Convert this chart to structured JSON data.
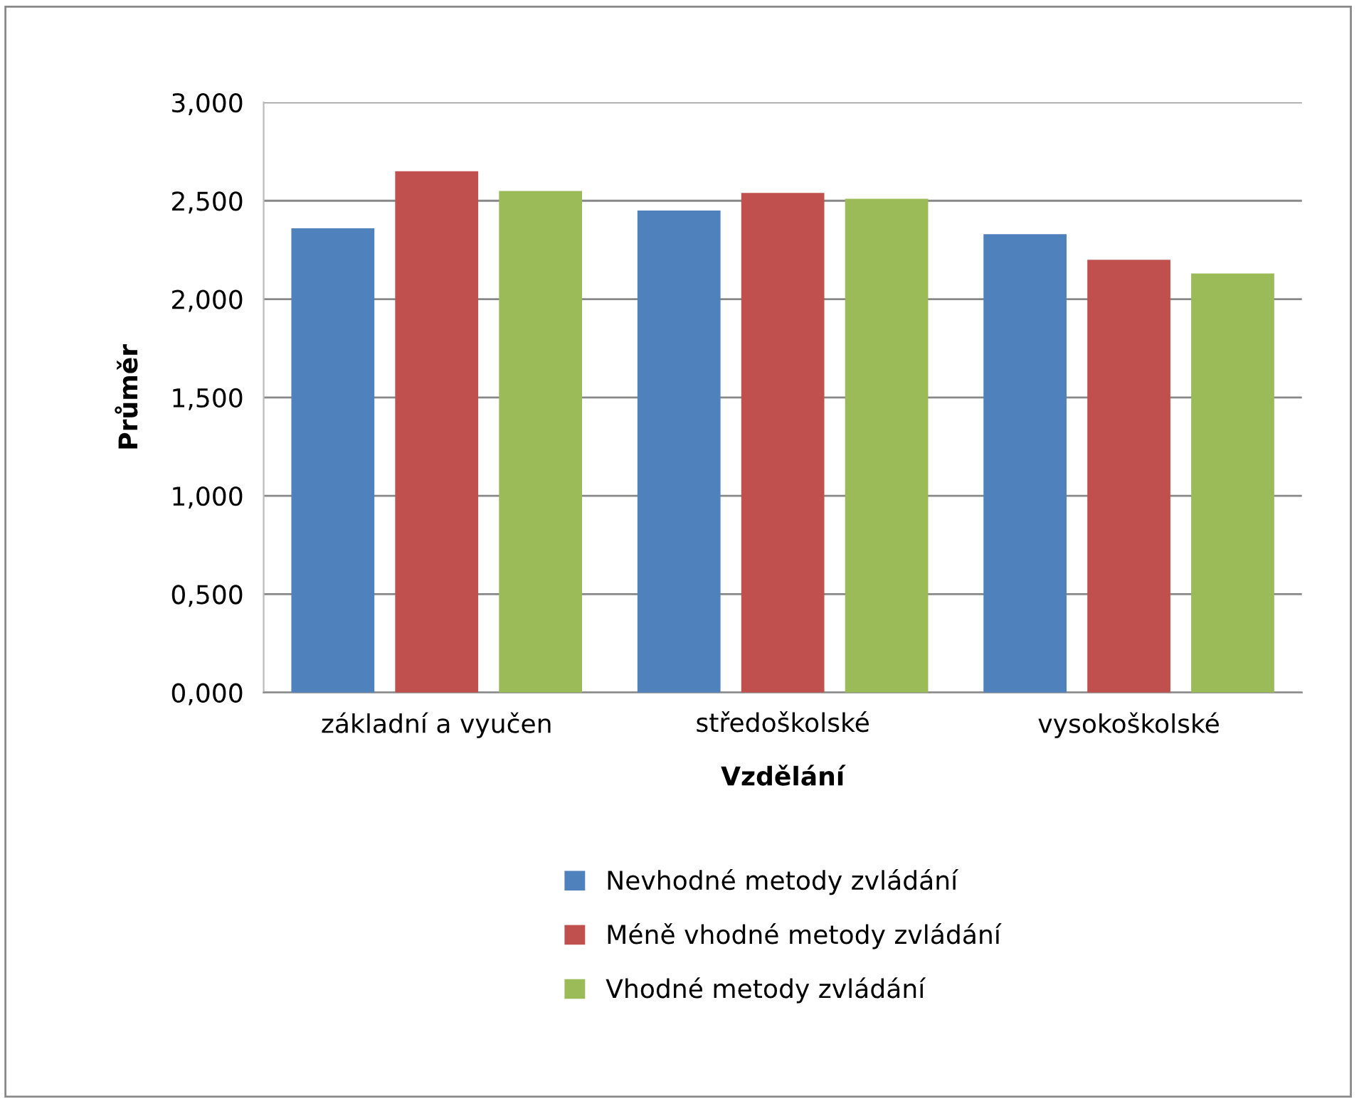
{
  "chart_data": {
    "type": "bar",
    "xlabel": "Vzdělání",
    "ylabel": "Průměr",
    "categories": [
      "základní a vyučen",
      "středoškolské",
      "vysokoškolské"
    ],
    "series": [
      {
        "name": "Nevhodné metody zvládání",
        "color": "#4f81bd",
        "values": [
          2.36,
          2.45,
          2.33
        ]
      },
      {
        "name": "Méně vhodné metody zvládání",
        "color": "#c0504d",
        "values": [
          2.65,
          2.54,
          2.2
        ]
      },
      {
        "name": "Vhodné metody zvládání",
        "color": "#9bbb59",
        "values": [
          2.55,
          2.51,
          2.13
        ]
      }
    ],
    "ylim": [
      0,
      3
    ],
    "yticks": [
      {
        "value": 0,
        "label": "0,000"
      },
      {
        "value": 0.5,
        "label": "0,500"
      },
      {
        "value": 1,
        "label": "1,000"
      },
      {
        "value": 1.5,
        "label": "1,500"
      },
      {
        "value": 2,
        "label": "2,000"
      },
      {
        "value": 2.5,
        "label": "2,500"
      },
      {
        "value": 3,
        "label": "3,000"
      }
    ],
    "grid": "y",
    "legend": "bottom"
  }
}
